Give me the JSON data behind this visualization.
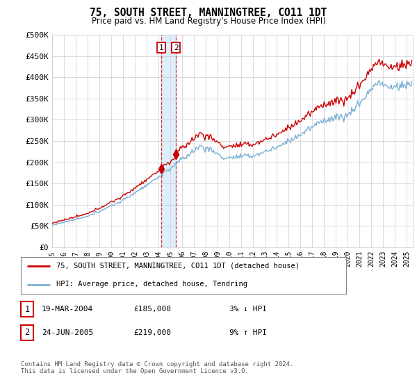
{
  "title": "75, SOUTH STREET, MANNINGTREE, CO11 1DT",
  "subtitle": "Price paid vs. HM Land Registry's House Price Index (HPI)",
  "ytick_values": [
    0,
    50000,
    100000,
    150000,
    200000,
    250000,
    300000,
    350000,
    400000,
    450000,
    500000
  ],
  "ytick_labels": [
    "£0",
    "£50K",
    "£100K",
    "£150K",
    "£200K",
    "£250K",
    "£300K",
    "£350K",
    "£400K",
    "£450K",
    "£500K"
  ],
  "ylim": [
    0,
    500000
  ],
  "xlim_start": 1995.0,
  "xlim_end": 2025.5,
  "hpi_color": "#7ab0d4",
  "price_color": "#cc0000",
  "shade_color": "#d0e8f8",
  "marker1_date": 2004.21,
  "marker2_date": 2005.48,
  "marker1_price": 185000,
  "marker2_price": 219000,
  "legend_line1": "75, SOUTH STREET, MANNINGTREE, CO11 1DT (detached house)",
  "legend_line2": "HPI: Average price, detached house, Tendring",
  "table_row1": [
    "1",
    "19-MAR-2004",
    "£185,000",
    "3% ↓ HPI"
  ],
  "table_row2": [
    "2",
    "24-JUN-2005",
    "£219,000",
    "9% ↑ HPI"
  ],
  "footnote": "Contains HM Land Registry data © Crown copyright and database right 2024.\nThis data is licensed under the Open Government Licence v3.0.",
  "background_color": "#ffffff",
  "grid_color": "#cccccc",
  "xtick_years": [
    1995,
    1996,
    1997,
    1998,
    1999,
    2000,
    2001,
    2002,
    2003,
    2004,
    2005,
    2006,
    2007,
    2008,
    2009,
    2010,
    2011,
    2012,
    2013,
    2014,
    2015,
    2016,
    2017,
    2018,
    2019,
    2020,
    2021,
    2022,
    2023,
    2024,
    2025
  ]
}
